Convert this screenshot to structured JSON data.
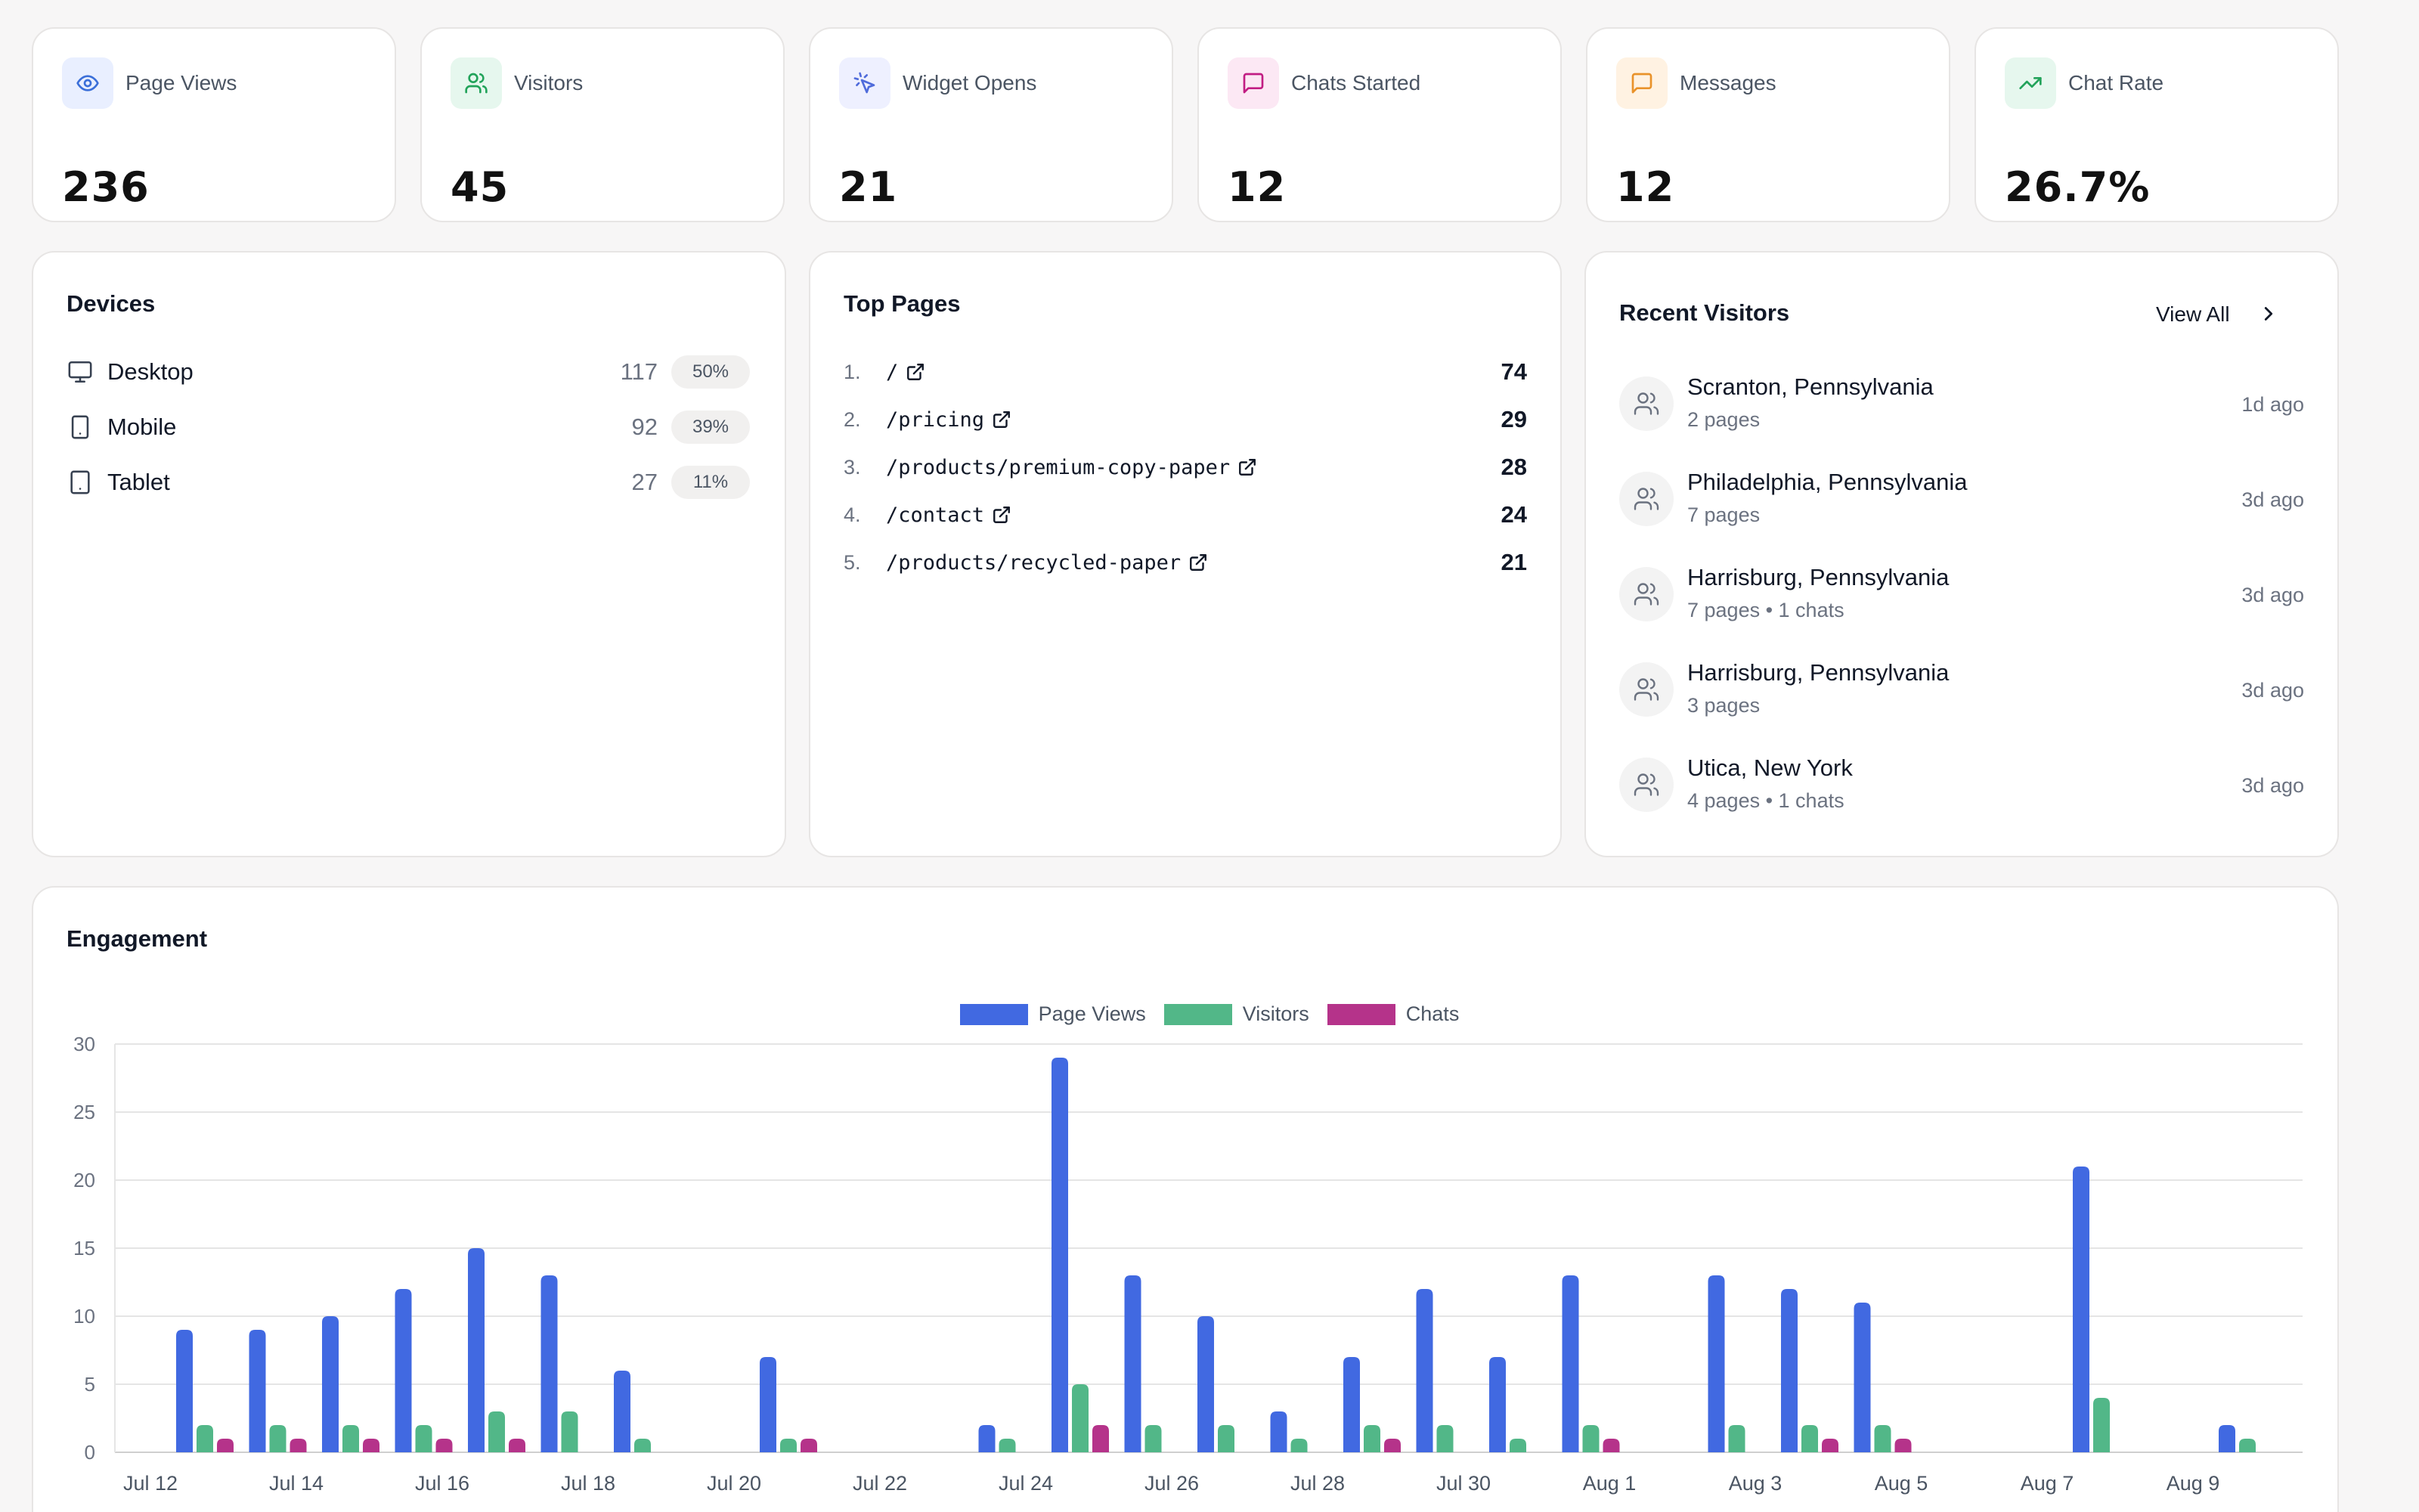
{
  "stats": [
    {
      "label": "Page Views",
      "value": "236",
      "icon": "eye-icon",
      "bg": "#e9efff",
      "fg": "#3b6fd9"
    },
    {
      "label": "Visitors",
      "value": "45",
      "icon": "users-icon",
      "bg": "#e6f7ee",
      "fg": "#22a35a"
    },
    {
      "label": "Widget Opens",
      "value": "21",
      "icon": "cursor-click-icon",
      "bg": "#eef0ff",
      "fg": "#4f6bdb"
    },
    {
      "label": "Chats Started",
      "value": "12",
      "icon": "message-square-icon",
      "bg": "#fce8f4",
      "fg": "#c21d83"
    },
    {
      "label": "Messages",
      "value": "12",
      "icon": "message-square-icon",
      "bg": "#fff2e2",
      "fg": "#e9922a"
    },
    {
      "label": "Chat Rate",
      "value": "26.7%",
      "icon": "trending-up-icon",
      "bg": "#e6f7ee",
      "fg": "#22a35a"
    }
  ],
  "devices": {
    "title": "Devices",
    "items": [
      {
        "label": "Desktop",
        "count": "117",
        "pct": "50%",
        "icon": "monitor-icon"
      },
      {
        "label": "Mobile",
        "count": "92",
        "pct": "39%",
        "icon": "smartphone-icon"
      },
      {
        "label": "Tablet",
        "count": "27",
        "pct": "11%",
        "icon": "tablet-icon"
      }
    ]
  },
  "top_pages": {
    "title": "Top Pages",
    "items": [
      {
        "rank": "1.",
        "path": "/",
        "count": "74"
      },
      {
        "rank": "2.",
        "path": "/pricing",
        "count": "29"
      },
      {
        "rank": "3.",
        "path": "/products/premium-copy-paper",
        "count": "28"
      },
      {
        "rank": "4.",
        "path": "/contact",
        "count": "24"
      },
      {
        "rank": "5.",
        "path": "/products/recycled-paper",
        "count": "21"
      }
    ]
  },
  "recent_visitors": {
    "title": "Recent Visitors",
    "view_all": "View All",
    "items": [
      {
        "city": "Scranton, Pennsylvania",
        "meta": "2 pages",
        "time": "1d ago"
      },
      {
        "city": "Philadelphia, Pennsylvania",
        "meta": "7 pages",
        "time": "3d ago"
      },
      {
        "city": "Harrisburg, Pennsylvania",
        "meta": "7 pages • 1 chats",
        "time": "3d ago"
      },
      {
        "city": "Harrisburg, Pennsylvania",
        "meta": "3 pages",
        "time": "3d ago"
      },
      {
        "city": "Utica, New York",
        "meta": "4 pages • 1 chats",
        "time": "3d ago"
      }
    ]
  },
  "engagement": {
    "title": "Engagement"
  },
  "chart_data": {
    "type": "bar",
    "categories": [
      "Jul 12",
      "Jul 13",
      "Jul 14",
      "Jul 15",
      "Jul 16",
      "Jul 17",
      "Jul 18",
      "Jul 19",
      "Jul 20",
      "Jul 21",
      "Jul 22",
      "Jul 23",
      "Jul 24",
      "Jul 25",
      "Jul 26",
      "Jul 27",
      "Jul 28",
      "Jul 29",
      "Jul 30",
      "Jul 31",
      "Aug 1",
      "Aug 2",
      "Aug 3",
      "Aug 4",
      "Aug 5",
      "Aug 6",
      "Aug 7",
      "Aug 8",
      "Aug 9",
      "Aug 10"
    ],
    "tick_labels": [
      "Jul 12",
      "Jul 14",
      "Jul 16",
      "Jul 18",
      "Jul 20",
      "Jul 22",
      "Jul 24",
      "Jul 26",
      "Jul 28",
      "Jul 30",
      "Aug 1",
      "Aug 3",
      "Aug 5",
      "Aug 7",
      "Aug 9"
    ],
    "series": [
      {
        "name": "Page Views",
        "color": "#4169e1",
        "values": [
          9,
          9,
          10,
          12,
          15,
          13,
          6,
          0,
          7,
          0,
          0,
          2,
          29,
          13,
          10,
          3,
          7,
          12,
          7,
          13,
          0,
          13,
          12,
          11,
          0,
          0,
          21,
          0,
          2,
          0
        ]
      },
      {
        "name": "Visitors",
        "color": "#52b788",
        "values": [
          2,
          2,
          2,
          2,
          3,
          3,
          1,
          0,
          1,
          0,
          0,
          1,
          5,
          2,
          2,
          1,
          2,
          2,
          1,
          2,
          0,
          2,
          2,
          2,
          0,
          0,
          4,
          0,
          1,
          0
        ]
      },
      {
        "name": "Chats",
        "color": "#b5338a",
        "values": [
          1,
          1,
          1,
          1,
          1,
          0,
          0,
          0,
          1,
          0,
          0,
          0,
          2,
          0,
          0,
          0,
          1,
          0,
          0,
          1,
          0,
          0,
          1,
          1,
          0,
          0,
          0,
          0,
          0,
          0
        ]
      }
    ],
    "ylim": [
      0,
      30
    ],
    "yticks": [
      0,
      5,
      10,
      15,
      20,
      25,
      30
    ],
    "grid": true,
    "legend_position": "top-center"
  }
}
